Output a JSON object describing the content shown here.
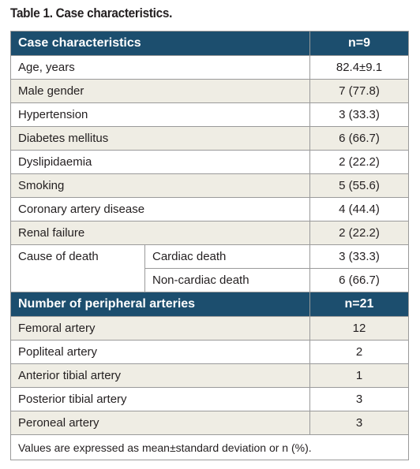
{
  "caption": "Table 1. Case characteristics.",
  "header1": {
    "label": "Case characteristics",
    "value": "n=9"
  },
  "characteristics": [
    {
      "label": "Age, years",
      "value": "82.4±9.1"
    },
    {
      "label": "Male gender",
      "value": "7 (77.8)"
    },
    {
      "label": "Hypertension",
      "value": "3 (33.3)"
    },
    {
      "label": "Diabetes mellitus",
      "value": "6 (66.7)"
    },
    {
      "label": "Dyslipidaemia",
      "value": "2 (22.2)"
    },
    {
      "label": "Smoking",
      "value": "5 (55.6)"
    },
    {
      "label": "Coronary artery disease",
      "value": "4 (44.4)"
    },
    {
      "label": "Renal failure",
      "value": "2 (22.2)"
    }
  ],
  "cause_of_death": {
    "label": "Cause of death",
    "rows": [
      {
        "label": "Cardiac death",
        "value": "3 (33.3)"
      },
      {
        "label": "Non-cardiac death",
        "value": "6 (66.7)"
      }
    ]
  },
  "header2": {
    "label": "Number of peripheral arteries",
    "value": "n=21"
  },
  "arteries": [
    {
      "label": "Femoral artery",
      "value": "12"
    },
    {
      "label": "Popliteal artery",
      "value": "2"
    },
    {
      "label": "Anterior tibial artery",
      "value": "1"
    },
    {
      "label": "Posterior tibial artery",
      "value": "3"
    },
    {
      "label": "Peroneal artery",
      "value": "3"
    }
  ],
  "footnote": "Values are expressed as mean±standard deviation or n (%)."
}
